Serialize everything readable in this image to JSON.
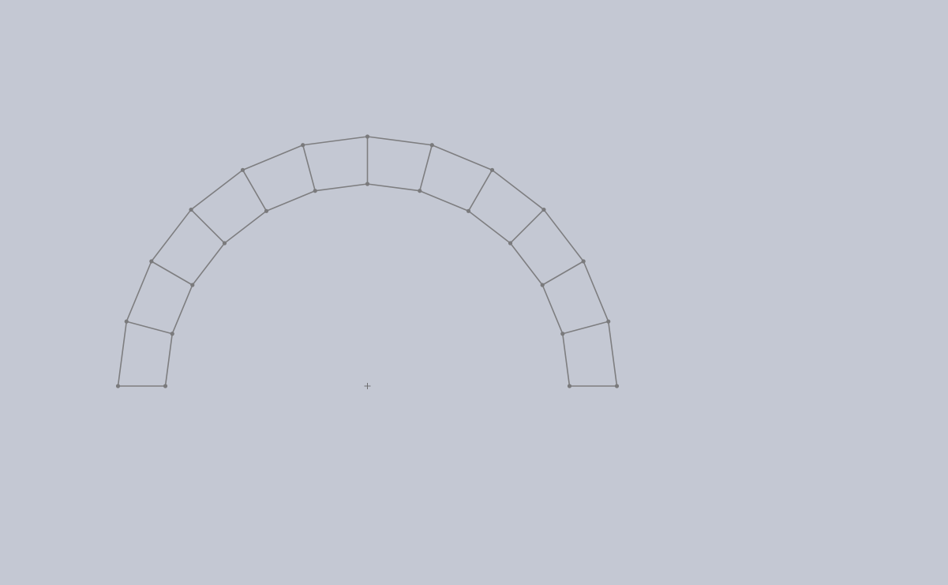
{
  "viewport": {
    "background_color": "#c4c8d3",
    "edge_color": "#7e7e80",
    "vertex_color": "#7a7a7c"
  },
  "sketch": {
    "shape": "semicircular arch",
    "segment_count": 12,
    "inner_radius": 256,
    "outer_radius": 316,
    "origin_marker": "plus-icon"
  }
}
